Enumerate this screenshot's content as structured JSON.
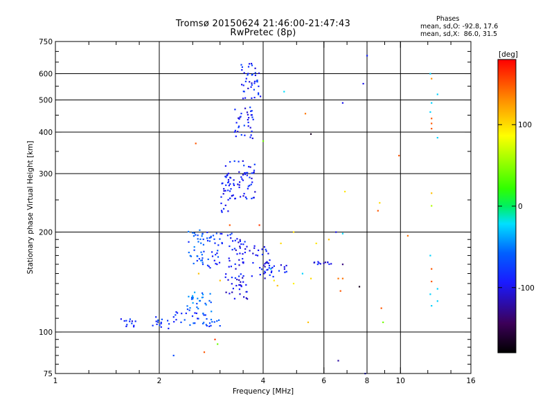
{
  "title": {
    "line1": "Tromsø 20150624 21:46:00-21:47:43",
    "line2": "RwPretec (8p)"
  },
  "phase_stats": {
    "heading": "Phases",
    "o_line": "mean, sd,O: -92.8, 17.6",
    "x_line": "mean, sd,X:  86.0, 31.5"
  },
  "chart_data": {
    "type": "scatter",
    "xlabel": "Frequency [MHz]",
    "ylabel": "Stationary phase Virtual Height [km]",
    "x_scale": "log2",
    "y_scale": "log",
    "xlim": [
      1,
      16
    ],
    "ylim": [
      75,
      750
    ],
    "x_ticks": [
      1,
      2,
      4,
      6,
      8,
      10,
      16
    ],
    "x_minor_ticks": [
      1.25,
      1.5,
      1.75,
      2.5,
      3,
      3.5,
      5,
      7,
      9,
      12,
      14
    ],
    "x_grid": [
      2,
      4,
      6,
      8,
      10
    ],
    "y_ticks": [
      75,
      100,
      200,
      300,
      400,
      500,
      600,
      750
    ],
    "y_minor_ticks": [
      80,
      85,
      90,
      95,
      110,
      120,
      130,
      140,
      150,
      160,
      170,
      180,
      190,
      250,
      350,
      450,
      550,
      650,
      700
    ],
    "y_grid": [
      100,
      200,
      300,
      400,
      500,
      600
    ],
    "grid": true,
    "colorbar": {
      "label": "[deg]",
      "range": [
        -180,
        180
      ],
      "ticks": [
        100,
        0,
        -100
      ],
      "colormap": "rainbow (black-purple-blue-cyan-green-yellow-orange-red)"
    },
    "phase_mean_sd": {
      "O": [
        -92.8,
        17.6
      ],
      "X": [
        86.0,
        31.5
      ]
    },
    "clusters": [
      {
        "f": [
          1.55,
          1.72
        ],
        "h": [
          103,
          110
        ],
        "phase": -100
      },
      {
        "f": [
          1.9,
          2.15
        ],
        "h": [
          102,
          112
        ],
        "phase": -95
      },
      {
        "f": [
          2.2,
          2.75
        ],
        "h": [
          105,
          115
        ],
        "phase": -85
      },
      {
        "f": [
          2.4,
          2.85
        ],
        "h": [
          115,
          132
        ],
        "phase": -65
      },
      {
        "f": [
          2.7,
          3.0
        ],
        "h": [
          104,
          110
        ],
        "phase": -80
      },
      {
        "f": [
          2.4,
          2.7
        ],
        "h": [
          160,
          205
        ],
        "phase": -75
      },
      {
        "f": [
          2.75,
          3.05
        ],
        "h": [
          155,
          200
        ],
        "phase": -90
      },
      {
        "f": [
          3.0,
          3.2
        ],
        "h": [
          228,
          320
        ],
        "phase": -100
      },
      {
        "f": [
          3.1,
          3.6
        ],
        "h": [
          125,
          150
        ],
        "phase": -108
      },
      {
        "f": [
          3.15,
          3.55
        ],
        "h": [
          155,
          200
        ],
        "phase": -105
      },
      {
        "f": [
          3.2,
          3.8
        ],
        "h": [
          250,
          330
        ],
        "phase": -100
      },
      {
        "f": [
          3.3,
          3.75
        ],
        "h": [
          380,
          480
        ],
        "phase": -100
      },
      {
        "f": [
          3.45,
          3.95
        ],
        "h": [
          500,
          645
        ],
        "phase": -100
      },
      {
        "f": [
          3.5,
          4.15
        ],
        "h": [
          170,
          182
        ],
        "phase": -105
      },
      {
        "f": [
          3.7,
          4.3
        ],
        "h": [
          145,
          165
        ],
        "phase": -105
      },
      {
        "f": [
          4.1,
          4.7
        ],
        "h": [
          150,
          160
        ],
        "phase": -100
      },
      {
        "f": [
          5.6,
          6.3
        ],
        "h": [
          160,
          163
        ],
        "phase": -110
      }
    ],
    "points": [
      {
        "f": 4.6,
        "h": 530,
        "phase": -25
      },
      {
        "f": 5.3,
        "h": 455,
        "phase": 140
      },
      {
        "f": 5.5,
        "h": 395,
        "phase": -170
      },
      {
        "f": 2.55,
        "h": 370,
        "phase": 150
      },
      {
        "f": 6.8,
        "h": 490,
        "phase": -110
      },
      {
        "f": 7.8,
        "h": 560,
        "phase": -110
      },
      {
        "f": 8.0,
        "h": 680,
        "phase": -100
      },
      {
        "f": 9.9,
        "h": 340,
        "phase": 150
      },
      {
        "f": 6.9,
        "h": 265,
        "phase": 95
      },
      {
        "f": 8.7,
        "h": 245,
        "phase": 100
      },
      {
        "f": 8.6,
        "h": 232,
        "phase": 150
      },
      {
        "f": 6.5,
        "h": 200,
        "phase": -110
      },
      {
        "f": 6.2,
        "h": 190,
        "phase": 110
      },
      {
        "f": 5.7,
        "h": 185,
        "phase": 95
      },
      {
        "f": 6.8,
        "h": 198,
        "phase": -30
      },
      {
        "f": 10.5,
        "h": 195,
        "phase": 140
      },
      {
        "f": 6.8,
        "h": 160,
        "phase": -140
      },
      {
        "f": 6.6,
        "h": 145,
        "phase": 140
      },
      {
        "f": 6.8,
        "h": 145,
        "phase": 140
      },
      {
        "f": 6.7,
        "h": 133,
        "phase": 150
      },
      {
        "f": 7.6,
        "h": 137,
        "phase": -170
      },
      {
        "f": 8.8,
        "h": 118,
        "phase": 150
      },
      {
        "f": 8.9,
        "h": 107,
        "phase": 40
      },
      {
        "f": 5.4,
        "h": 107,
        "phase": 110
      },
      {
        "f": 6.6,
        "h": 82,
        "phase": -130
      },
      {
        "f": 2.7,
        "h": 87,
        "phase": 150
      },
      {
        "f": 2.2,
        "h": 85,
        "phase": -80
      },
      {
        "f": 2.95,
        "h": 92,
        "phase": 40
      },
      {
        "f": 2.9,
        "h": 95,
        "phase": 160
      },
      {
        "f": 4.0,
        "h": 376,
        "phase": 40
      },
      {
        "f": 4.9,
        "h": 200,
        "phase": 100
      },
      {
        "f": 4.5,
        "h": 185,
        "phase": 100
      },
      {
        "f": 4.3,
        "h": 143,
        "phase": 95
      },
      {
        "f": 5.5,
        "h": 145,
        "phase": 100
      },
      {
        "f": 4.9,
        "h": 140,
        "phase": 90
      },
      {
        "f": 4.4,
        "h": 138,
        "phase": 110
      },
      {
        "f": 2.6,
        "h": 150,
        "phase": 110
      },
      {
        "f": 3.0,
        "h": 143,
        "phase": 110
      },
      {
        "f": 4.2,
        "h": 155,
        "phase": -30
      },
      {
        "f": 3.9,
        "h": 210,
        "phase": 160
      },
      {
        "f": 3.2,
        "h": 210,
        "phase": 150
      },
      {
        "f": 5.2,
        "h": 150,
        "phase": -30
      },
      {
        "f": 7.9,
        "h": 75,
        "phase": -110
      },
      {
        "f": 12.2,
        "h": 600,
        "phase": -30
      },
      {
        "f": 12.3,
        "h": 580,
        "phase": 130
      },
      {
        "f": 12.8,
        "h": 520,
        "phase": -30
      },
      {
        "f": 12.3,
        "h": 490,
        "phase": -30
      },
      {
        "f": 12.2,
        "h": 460,
        "phase": -30
      },
      {
        "f": 12.3,
        "h": 440,
        "phase": 150
      },
      {
        "f": 12.3,
        "h": 425,
        "phase": 150
      },
      {
        "f": 12.3,
        "h": 410,
        "phase": 150
      },
      {
        "f": 12.8,
        "h": 385,
        "phase": -30
      },
      {
        "f": 12.3,
        "h": 262,
        "phase": 110
      },
      {
        "f": 12.3,
        "h": 240,
        "phase": 60
      },
      {
        "f": 12.2,
        "h": 170,
        "phase": -30
      },
      {
        "f": 12.3,
        "h": 155,
        "phase": 150
      },
      {
        "f": 12.3,
        "h": 142,
        "phase": 150
      },
      {
        "f": 12.8,
        "h": 135,
        "phase": -30
      },
      {
        "f": 12.2,
        "h": 130,
        "phase": -30
      },
      {
        "f": 12.8,
        "h": 124,
        "phase": -30
      },
      {
        "f": 12.3,
        "h": 120,
        "phase": -30
      }
    ]
  }
}
